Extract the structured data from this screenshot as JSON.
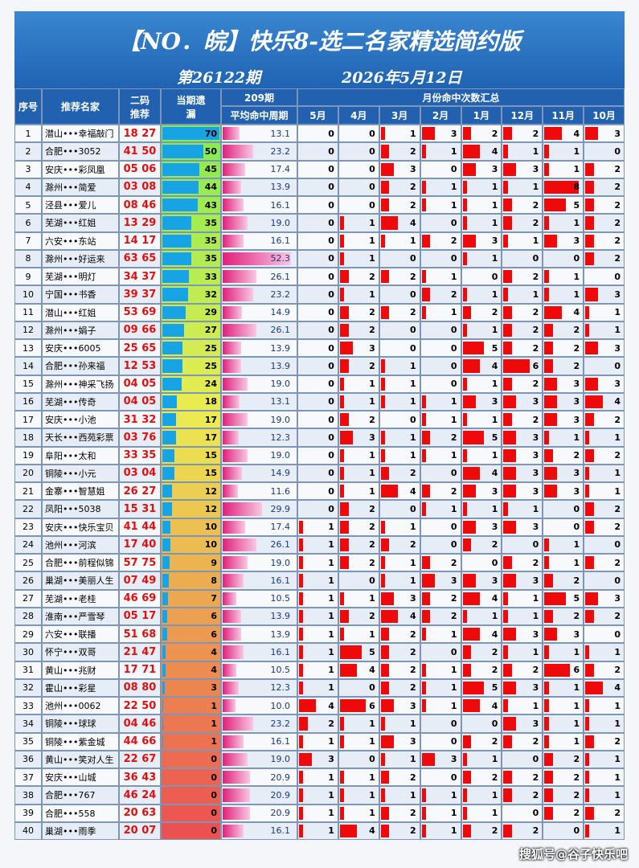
{
  "header": {
    "title": "【NO．皖】快乐8-选二名家精选简约版",
    "issue": "第26122期",
    "date": "2026年5月12日"
  },
  "columns": {
    "no": "序号",
    "name": "推荐名家",
    "code": "二码推荐",
    "miss": "当期遗漏",
    "period": "209期",
    "avg": "平均命中周期",
    "months_title": "月份命中次数汇总",
    "months": [
      "5月",
      "4月",
      "3月",
      "2月",
      "1月",
      "12月",
      "11月",
      "10月"
    ]
  },
  "table": {
    "rows": [
      [
        "1",
        "潜山•••幸福敲门",
        "18 27",
        70,
        "13.1",
        0,
        0,
        1,
        3,
        2,
        2,
        4,
        3
      ],
      [
        "2",
        "合肥•••3052",
        "41 50",
        50,
        "23.2",
        0,
        0,
        2,
        1,
        4,
        1,
        1,
        0
      ],
      [
        "3",
        "安庆•••彩凤凰",
        "05 06",
        45,
        "17.4",
        0,
        0,
        3,
        0,
        3,
        3,
        1,
        2
      ],
      [
        "4",
        "滁州•••简爱",
        "03 08",
        44,
        "13.9",
        0,
        0,
        2,
        1,
        1,
        1,
        8,
        2
      ],
      [
        "5",
        "泾县•••爱儿",
        "08 46",
        43,
        "16.1",
        0,
        0,
        2,
        1,
        1,
        2,
        5,
        2
      ],
      [
        "6",
        "芜湖•••红姐",
        "13 29",
        35,
        "19.0",
        0,
        1,
        4,
        0,
        1,
        2,
        1,
        2
      ],
      [
        "7",
        "六安•••东站",
        "14 17",
        35,
        "16.1",
        0,
        1,
        1,
        2,
        3,
        1,
        3,
        2
      ],
      [
        "8",
        "滁州•••好运来",
        "63 65",
        35,
        "52.3",
        0,
        1,
        0,
        0,
        1,
        0,
        0,
        2
      ],
      [
        "9",
        "芜湖•••明灯",
        "34 37",
        33,
        "26.1",
        0,
        2,
        2,
        1,
        0,
        2,
        1,
        0
      ],
      [
        "10",
        "宁国•••书香",
        "39 37",
        32,
        "23.2",
        0,
        1,
        0,
        2,
        1,
        1,
        1,
        3
      ],
      [
        "11",
        "潜山•••红姐",
        "53 69",
        29,
        "14.9",
        0,
        2,
        2,
        1,
        2,
        2,
        4,
        1
      ],
      [
        "12",
        "滁州•••娟子",
        "09 66",
        27,
        "26.1",
        0,
        2,
        0,
        0,
        1,
        2,
        2,
        1
      ],
      [
        "13",
        "安庆•••6005",
        "25 65",
        25,
        "13.9",
        0,
        3,
        0,
        0,
        5,
        2,
        2,
        3
      ],
      [
        "14",
        "合肥•••孙来福",
        "12 53",
        25,
        "13.9",
        0,
        2,
        1,
        0,
        4,
        6,
        2,
        0
      ],
      [
        "15",
        "滁州•••神采飞扬",
        "04 05",
        24,
        "19.0",
        0,
        1,
        1,
        0,
        1,
        2,
        3,
        3
      ],
      [
        "16",
        "芜湖•••传奇",
        "04 05",
        18,
        "13.1",
        0,
        1,
        1,
        1,
        3,
        3,
        3,
        4
      ],
      [
        "17",
        "安庆•••小池",
        "31 32",
        17,
        "19.0",
        0,
        2,
        0,
        1,
        1,
        2,
        3,
        2
      ],
      [
        "18",
        "天长•••西苑彩票",
        "03 76",
        17,
        "12.3",
        0,
        3,
        1,
        2,
        5,
        3,
        1,
        1
      ],
      [
        "19",
        "阜阳•••太和",
        "33 35",
        15,
        "19.0",
        0,
        1,
        1,
        1,
        1,
        3,
        2,
        2
      ],
      [
        "20",
        "铜陵•••小元",
        "03 04",
        15,
        "14.9",
        0,
        1,
        2,
        0,
        4,
        3,
        3,
        1
      ],
      [
        "21",
        "金寨•••智慧姐",
        "26 27",
        12,
        "11.6",
        0,
        1,
        4,
        2,
        3,
        3,
        3,
        1
      ],
      [
        "22",
        "凤阳•••5038",
        "15 31",
        12,
        "29.9",
        0,
        2,
        0,
        1,
        1,
        1,
        0,
        2
      ],
      [
        "23",
        "安庆•••快乐宝贝",
        "41 44",
        10,
        "17.4",
        1,
        2,
        1,
        0,
        3,
        3,
        0,
        2
      ],
      [
        "24",
        "池州•••河滨",
        "17 40",
        10,
        "26.1",
        1,
        2,
        2,
        0,
        2,
        0,
        1,
        0
      ],
      [
        "25",
        "合肥•••前程似锦",
        "57 75",
        9,
        "19.0",
        1,
        2,
        1,
        2,
        0,
        2,
        1,
        2
      ],
      [
        "26",
        "巢湖•••美丽人生",
        "07 49",
        8,
        "16.1",
        1,
        0,
        1,
        3,
        3,
        3,
        2,
        0
      ],
      [
        "27",
        "芜湖•••老桂",
        "46 69",
        7,
        "10.5",
        1,
        1,
        3,
        2,
        4,
        1,
        5,
        3
      ],
      [
        "28",
        "淮南•••严雪琴",
        "05 17",
        6,
        "13.9",
        1,
        2,
        4,
        2,
        1,
        1,
        2,
        2
      ],
      [
        "29",
        "六安•••联播",
        "51 68",
        6,
        "13.9",
        1,
        1,
        2,
        1,
        4,
        3,
        3,
        0
      ],
      [
        "30",
        "怀宁•••双哥",
        "21 47",
        4,
        "16.1",
        1,
        5,
        2,
        0,
        2,
        1,
        1,
        1
      ],
      [
        "31",
        "黄山•••兆财",
        "17 71",
        4,
        "10.5",
        1,
        4,
        2,
        1,
        2,
        2,
        6,
        2
      ],
      [
        "32",
        "霍山•••彩星",
        "08 80",
        3,
        "12.3",
        1,
        0,
        2,
        1,
        5,
        3,
        1,
        4
      ],
      [
        "33",
        "池州•••0062",
        "22 50",
        1,
        "10.0",
        4,
        6,
        3,
        1,
        4,
        1,
        1,
        1
      ],
      [
        "34",
        "铜陵•••球球",
        "04 46",
        1,
        "23.2",
        2,
        1,
        1,
        0,
        0,
        3,
        1,
        1
      ],
      [
        "35",
        "铜陵•••紫金城",
        "44 66",
        1,
        "16.1",
        1,
        1,
        3,
        0,
        2,
        2,
        1,
        2
      ],
      [
        "36",
        "黄山•••笑对人生",
        "22 67",
        0,
        "19.0",
        3,
        0,
        1,
        3,
        1,
        0,
        2,
        1
      ],
      [
        "37",
        "安庆•••山城",
        "36 43",
        0,
        "20.9",
        1,
        1,
        2,
        0,
        2,
        2,
        2,
        1
      ],
      [
        "38",
        "合肥•••767",
        "46 24",
        0,
        "20.9",
        1,
        1,
        1,
        1,
        1,
        2,
        2,
        1
      ],
      [
        "39",
        "合肥•••558",
        "20 63",
        0,
        "20.9",
        1,
        1,
        2,
        1,
        1,
        0,
        2,
        2
      ],
      [
        "40",
        "巢湖•••雨季",
        "20 07",
        0,
        "16.1",
        1,
        4,
        2,
        1,
        2,
        2,
        0,
        1
      ]
    ]
  },
  "watermark": "搜狐号@谷子快乐吧"
}
